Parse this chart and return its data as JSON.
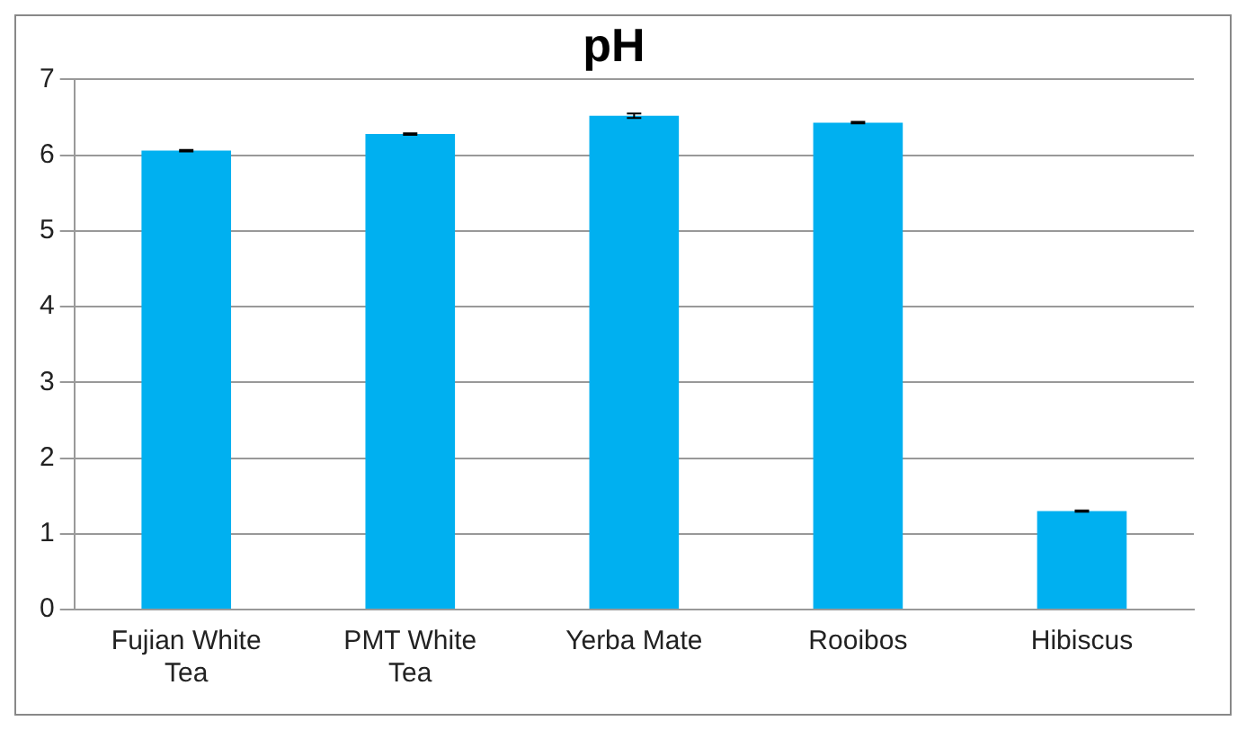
{
  "chart_data": {
    "type": "bar",
    "title": "pH",
    "categories": [
      "Fujian White Tea",
      "PMT White Tea",
      "Yerba Mate",
      "Rooibos",
      "Hibiscus"
    ],
    "values": [
      6.06,
      6.28,
      6.52,
      6.43,
      1.3
    ],
    "color": "#00b0f0",
    "errors": [
      0.01,
      0.01,
      0.03,
      0.01,
      0.01
    ],
    "ylim": [
      0,
      7
    ],
    "yticks": [
      0,
      1,
      2,
      3,
      4,
      5,
      6,
      7
    ],
    "grid": "y",
    "legend": false
  }
}
